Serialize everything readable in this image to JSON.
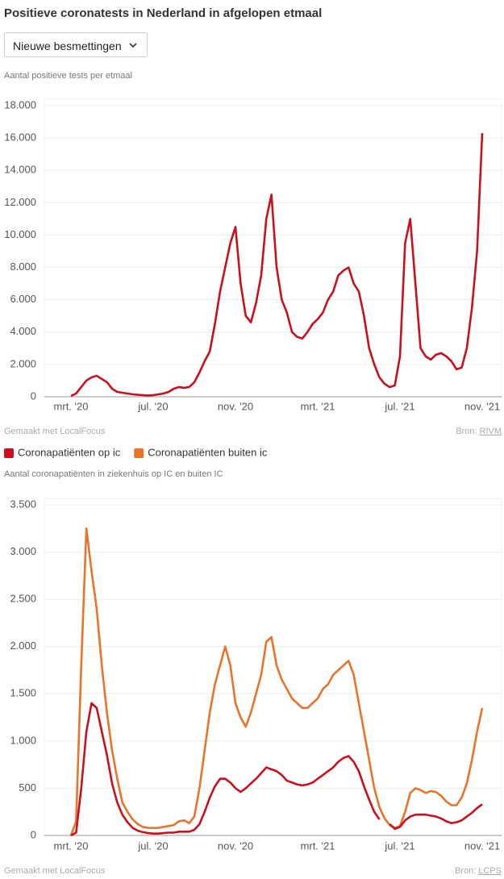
{
  "header": {
    "title": "Positieve coronatests in Nederland in afgelopen etmaal",
    "dropdown": "Nieuwe besmettingen"
  },
  "chart_data": [
    {
      "type": "line",
      "subtitle": "Aantal positieve tests per etmaal",
      "categories": [
        "mrt. '20",
        null,
        null,
        null,
        null,
        null,
        null,
        null,
        null,
        null,
        null,
        null,
        null,
        null,
        null,
        null,
        "jul. '20",
        null,
        null,
        null,
        null,
        null,
        null,
        null,
        null,
        null,
        null,
        null,
        null,
        null,
        null,
        null,
        "nov. '20",
        null,
        null,
        null,
        null,
        null,
        null,
        null,
        null,
        null,
        null,
        null,
        null,
        null,
        null,
        null,
        "mrt. '21",
        null,
        null,
        null,
        null,
        null,
        null,
        null,
        null,
        null,
        null,
        null,
        null,
        null,
        null,
        null,
        "jul. '21",
        null,
        null,
        null,
        null,
        null,
        null,
        null,
        null,
        null,
        null,
        null,
        null,
        null,
        null,
        null,
        "nov. '21"
      ],
      "color": "#c8101e",
      "values": [
        50,
        200,
        600,
        1000,
        1200,
        1300,
        1100,
        900,
        500,
        300,
        250,
        200,
        150,
        120,
        100,
        80,
        100,
        150,
        200,
        300,
        500,
        600,
        550,
        600,
        900,
        1500,
        2200,
        2800,
        4500,
        6500,
        8000,
        9500,
        10500,
        7000,
        5000,
        4600,
        5800,
        7500,
        11000,
        12500,
        8000,
        6000,
        5200,
        4000,
        3700,
        3600,
        4000,
        4500,
        4800,
        5200,
        6000,
        6500,
        7500,
        7800,
        8000,
        7000,
        6500,
        5000,
        3000,
        2000,
        1200,
        800,
        600,
        700,
        2500,
        9500,
        11000,
        7000,
        3000,
        2500,
        2300,
        2600,
        2700,
        2500,
        2200,
        1700,
        1800,
        3000,
        5500,
        9000,
        16300
      ],
      "ylim": [
        0,
        18000
      ],
      "yticks": [
        0,
        {
          "value": 2000,
          "label": "2.000"
        },
        {
          "value": 4000,
          "label": "4.000"
        },
        {
          "value": 6000,
          "label": "6.000"
        },
        {
          "value": 8000,
          "label": "8.000"
        },
        {
          "value": 10000,
          "label": "10.000"
        },
        {
          "value": 12000,
          "label": "12.000"
        },
        {
          "value": 14000,
          "label": "14.000"
        },
        {
          "value": 16000,
          "label": "16.000"
        },
        {
          "value": 18000,
          "label": "18.000"
        }
      ],
      "grid": true,
      "credit": "Gemaakt met LocalFocus",
      "source_label": "Bron:",
      "source": "RIVM"
    },
    {
      "type": "line",
      "subtitle": "Aantal coronapatiënten in ziekenhuis op IC en buiten IC",
      "categories": [
        "mrt. '20",
        null,
        null,
        null,
        null,
        null,
        null,
        null,
        null,
        null,
        null,
        null,
        null,
        null,
        null,
        null,
        "jul. '20",
        null,
        null,
        null,
        null,
        null,
        null,
        null,
        null,
        null,
        null,
        null,
        null,
        null,
        null,
        null,
        "nov. '20",
        null,
        null,
        null,
        null,
        null,
        null,
        null,
        null,
        null,
        null,
        null,
        null,
        null,
        null,
        null,
        "mrt. '21",
        null,
        null,
        null,
        null,
        null,
        null,
        null,
        null,
        null,
        null,
        null,
        null,
        null,
        null,
        null,
        "jul. '21",
        null,
        null,
        null,
        null,
        null,
        null,
        null,
        null,
        null,
        null,
        null,
        null,
        null,
        null,
        null,
        "nov. '21"
      ],
      "series": [
        {
          "name": "Coronapatiënten op ic",
          "color": "#c8101e",
          "values": [
            0,
            30,
            500,
            1100,
            1400,
            1350,
            1100,
            850,
            550,
            350,
            220,
            140,
            80,
            50,
            35,
            25,
            20,
            20,
            25,
            30,
            30,
            40,
            40,
            40,
            60,
            120,
            250,
            400,
            520,
            600,
            600,
            560,
            500,
            460,
            500,
            550,
            600,
            660,
            720,
            700,
            680,
            640,
            580,
            560,
            540,
            530,
            540,
            560,
            600,
            640,
            680,
            720,
            780,
            820,
            840,
            780,
            680,
            520,
            380,
            250,
            170,
            null,
            120,
            70,
            90,
            160,
            200,
            220,
            220,
            220,
            210,
            200,
            180,
            150,
            130,
            140,
            160,
            200,
            240,
            290,
            330
          ]
        },
        {
          "name": "Coronapatiënten buiten ic",
          "color": "#e8742c",
          "values": [
            0,
            150,
            1800,
            3250,
            2800,
            2400,
            1800,
            1300,
            900,
            600,
            350,
            250,
            170,
            120,
            90,
            80,
            80,
            80,
            90,
            100,
            110,
            150,
            160,
            130,
            200,
            500,
            900,
            1300,
            1600,
            1800,
            2000,
            1800,
            1400,
            1250,
            1150,
            1300,
            1500,
            1700,
            2050,
            2100,
            1800,
            1650,
            1550,
            1450,
            1400,
            1350,
            1350,
            1400,
            1450,
            1550,
            1600,
            1700,
            1750,
            1800,
            1850,
            1700,
            1400,
            1100,
            800,
            500,
            300,
            180,
            110,
            80,
            100,
            250,
            450,
            500,
            480,
            450,
            470,
            460,
            420,
            360,
            320,
            320,
            400,
            550,
            800,
            1100,
            1350
          ]
        }
      ],
      "ylim": [
        0,
        3500
      ],
      "yticks": [
        0,
        500,
        {
          "value": 1000,
          "label": "1.000"
        },
        {
          "value": 1500,
          "label": "1.500"
        },
        {
          "value": 2000,
          "label": "2.000"
        },
        {
          "value": 2500,
          "label": "2.500"
        },
        {
          "value": 3000,
          "label": "3.000"
        },
        {
          "value": 3500,
          "label": "3.500"
        }
      ],
      "grid": true,
      "credit": "Gemaakt met LocalFocus",
      "source_label": "Bron:",
      "source": "LCPS"
    }
  ]
}
